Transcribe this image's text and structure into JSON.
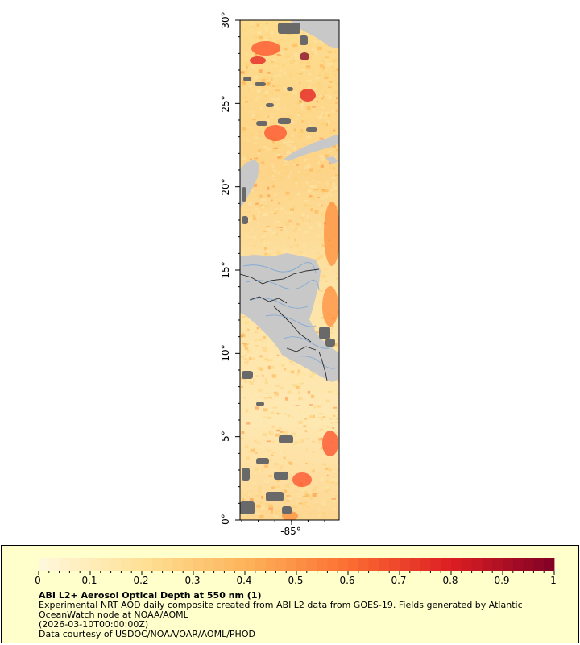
{
  "map": {
    "latitude_labels": [
      "30°",
      "25°",
      "20°",
      "15°",
      "10°",
      "5°",
      "0°"
    ],
    "longitude_labels": [
      "-85°"
    ]
  },
  "legend": {
    "tick_labels": [
      "0",
      "0.1",
      "0.2",
      "0.3",
      "0.4",
      "0.5",
      "0.6",
      "0.7",
      "0.8",
      "0.9",
      "1"
    ],
    "title": "ABI L2+ Aerosol Optical Depth at 550 nm (1)",
    "description_line1": "Experimental NRT AOD daily composite created from ABI L2 data from GOES-19. Fields generated by Atlantic",
    "description_line2": "OceanWatch node at NOAA/AOML",
    "timestamp": "(2026-03-10T00:00:00Z)",
    "credit": "Data courtesy of USDOC/NOAA/OAR/AOML/PHOD"
  },
  "colors": {
    "panel_background": "#ffffcc",
    "land": "#c8c8c8",
    "no_data": "#696969",
    "palette": [
      "#fff5d6",
      "#fee5a5",
      "#fed27a",
      "#feb14c",
      "#fd8d3c",
      "#fc4e2a",
      "#e31a1c",
      "#bd0026",
      "#800026"
    ]
  }
}
